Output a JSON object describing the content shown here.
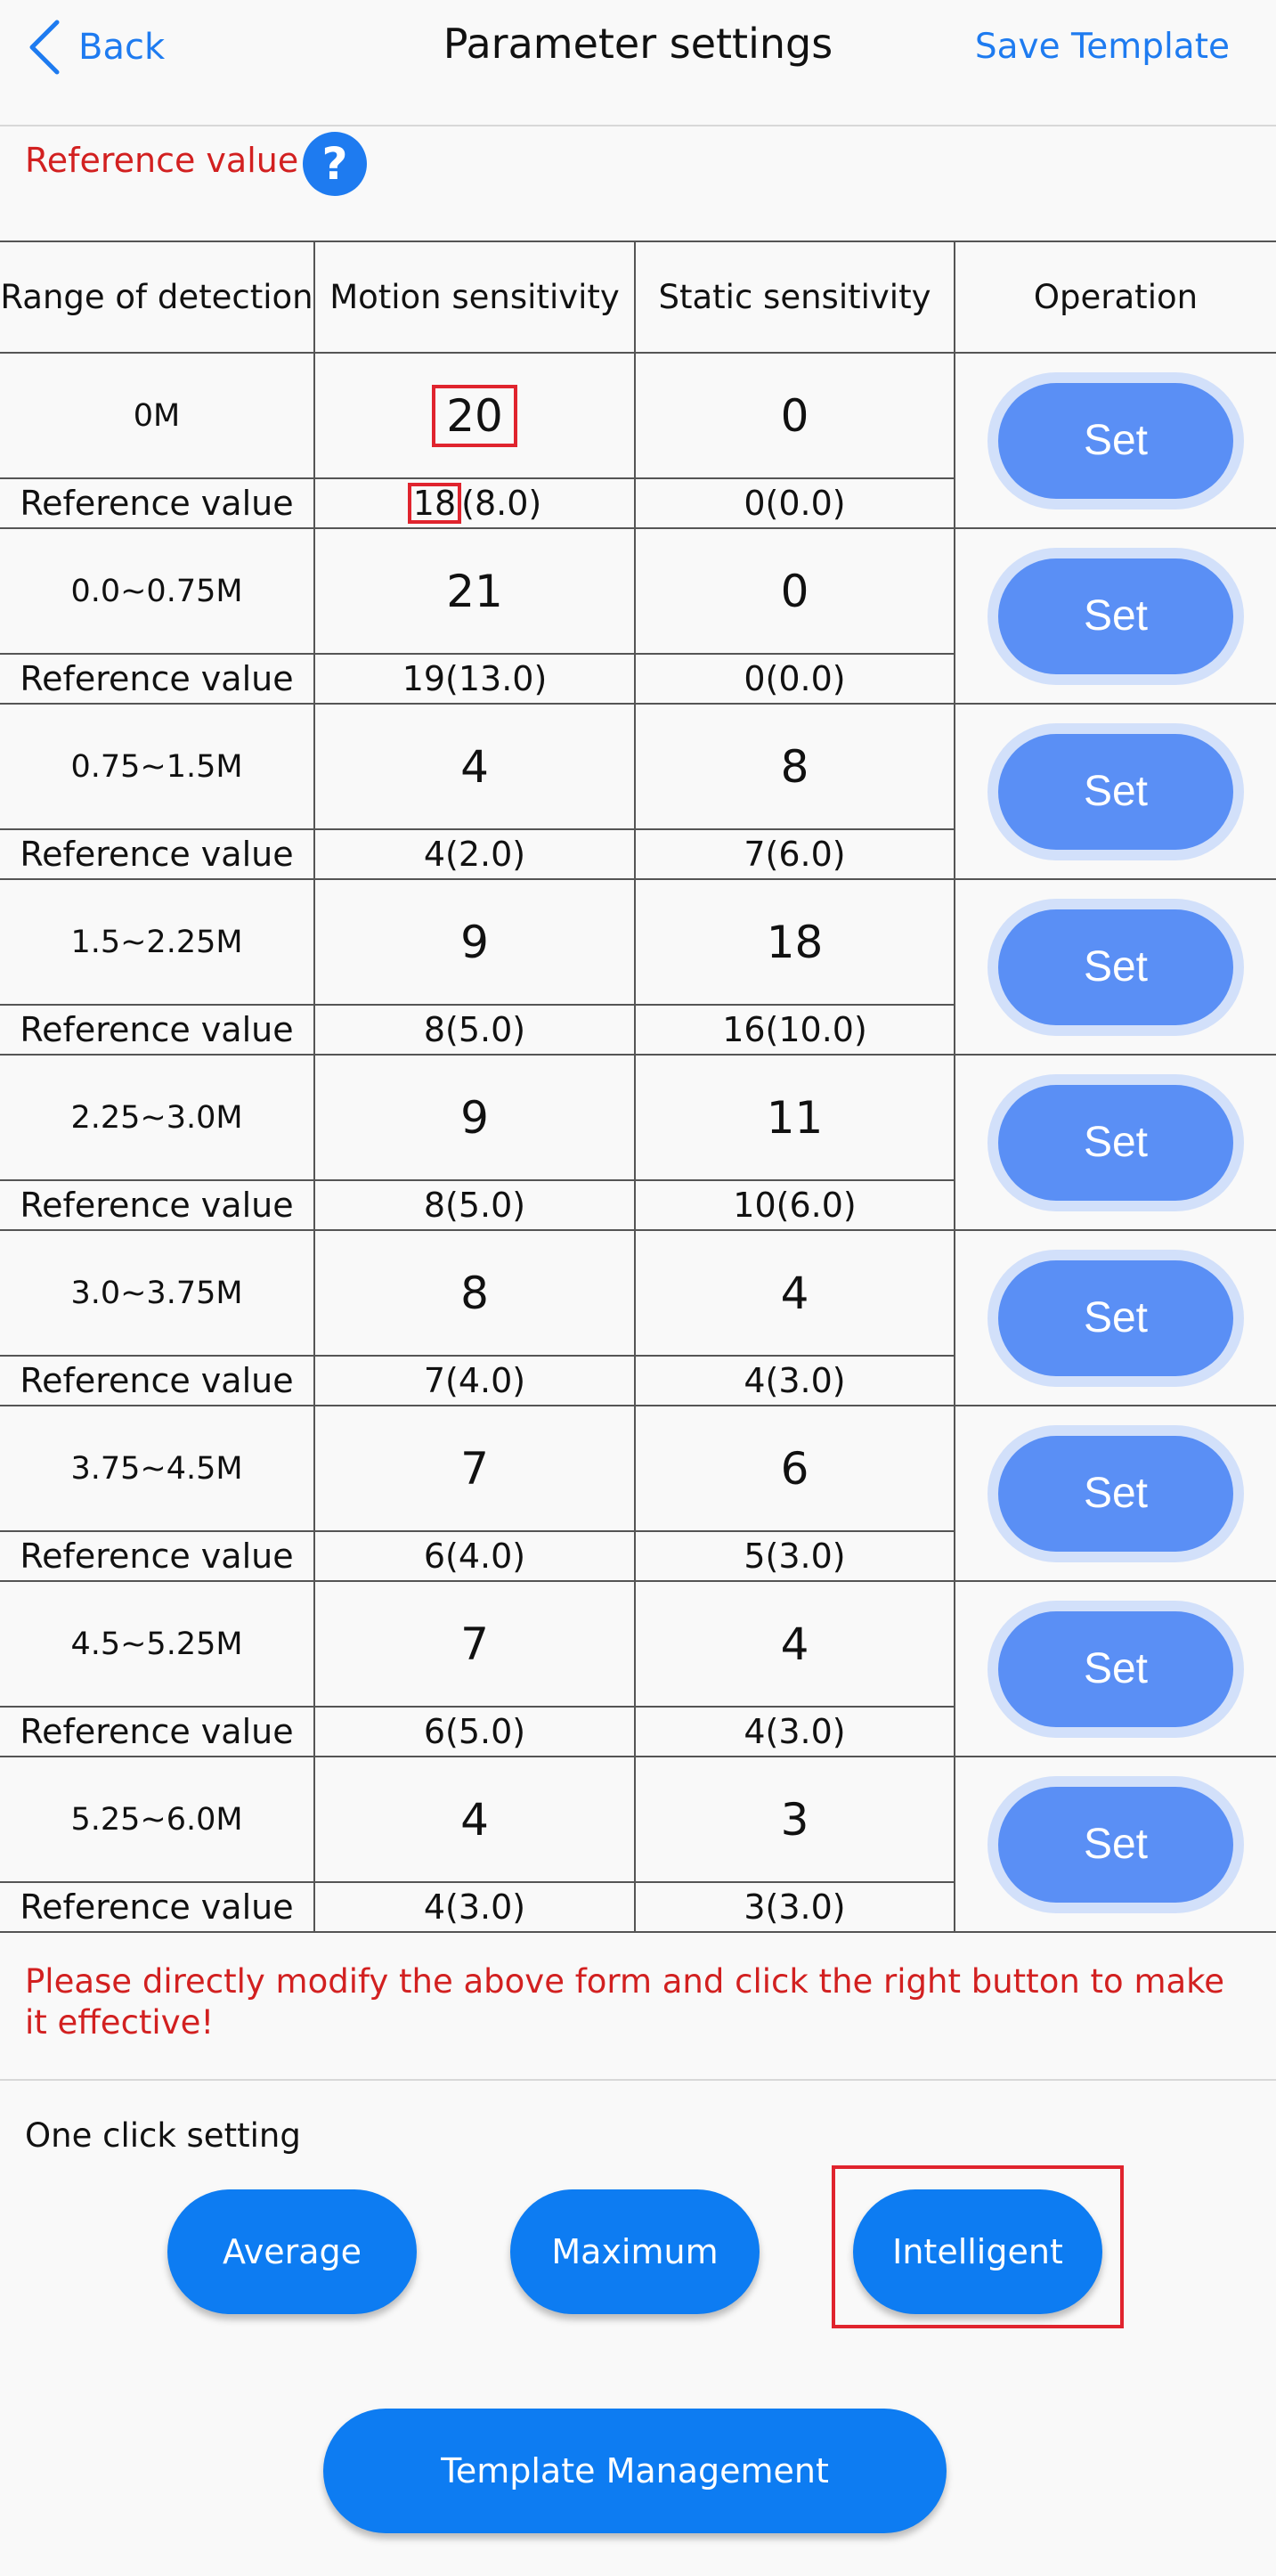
{
  "header": {
    "back_label": "Back",
    "title": "Parameter settings",
    "save_template_label": "Save Template"
  },
  "reference_label": "Reference value",
  "help_icon": "?",
  "table": {
    "headers": [
      "Range of detection",
      "Motion sensitivity",
      "Static sensitivity",
      "Operation"
    ],
    "reference_row_label": "Reference value",
    "set_label": "Set",
    "rows": [
      {
        "range": "0M",
        "motion": "20",
        "static": "0",
        "motion_ref_main": "18",
        "motion_ref_rest": "(8.0)",
        "static_ref": "0(0.0)"
      },
      {
        "range": "0.0~0.75M",
        "motion": "21",
        "static": "0",
        "motion_ref": "19(13.0)",
        "static_ref": "0(0.0)"
      },
      {
        "range": "0.75~1.5M",
        "motion": "4",
        "static": "8",
        "motion_ref": "4(2.0)",
        "static_ref": "7(6.0)"
      },
      {
        "range": "1.5~2.25M",
        "motion": "9",
        "static": "18",
        "motion_ref": "8(5.0)",
        "static_ref": "16(10.0)"
      },
      {
        "range": "2.25~3.0M",
        "motion": "9",
        "static": "11",
        "motion_ref": "8(5.0)",
        "static_ref": "10(6.0)"
      },
      {
        "range": "3.0~3.75M",
        "motion": "8",
        "static": "4",
        "motion_ref": "7(4.0)",
        "static_ref": "4(3.0)"
      },
      {
        "range": "3.75~4.5M",
        "motion": "7",
        "static": "6",
        "motion_ref": "6(4.0)",
        "static_ref": "5(3.0)"
      },
      {
        "range": "4.5~5.25M",
        "motion": "7",
        "static": "4",
        "motion_ref": "6(5.0)",
        "static_ref": "4(3.0)"
      },
      {
        "range": "5.25~6.0M",
        "motion": "4",
        "static": "3",
        "motion_ref": "4(3.0)",
        "static_ref": "3(3.0)"
      }
    ]
  },
  "notice": "Please directly modify the above form and click the right button to make it effective!",
  "one_click": {
    "label": "One click setting",
    "average": "Average",
    "maximum": "Maximum",
    "intelligent": "Intelligent"
  },
  "template_management_label": "Template Management",
  "colors": {
    "accent": "#1e7bf0",
    "button": "#0d7cf2",
    "set_button": "#5a8ff5",
    "warning_text": "#d22020",
    "highlight": "#e0242e"
  }
}
